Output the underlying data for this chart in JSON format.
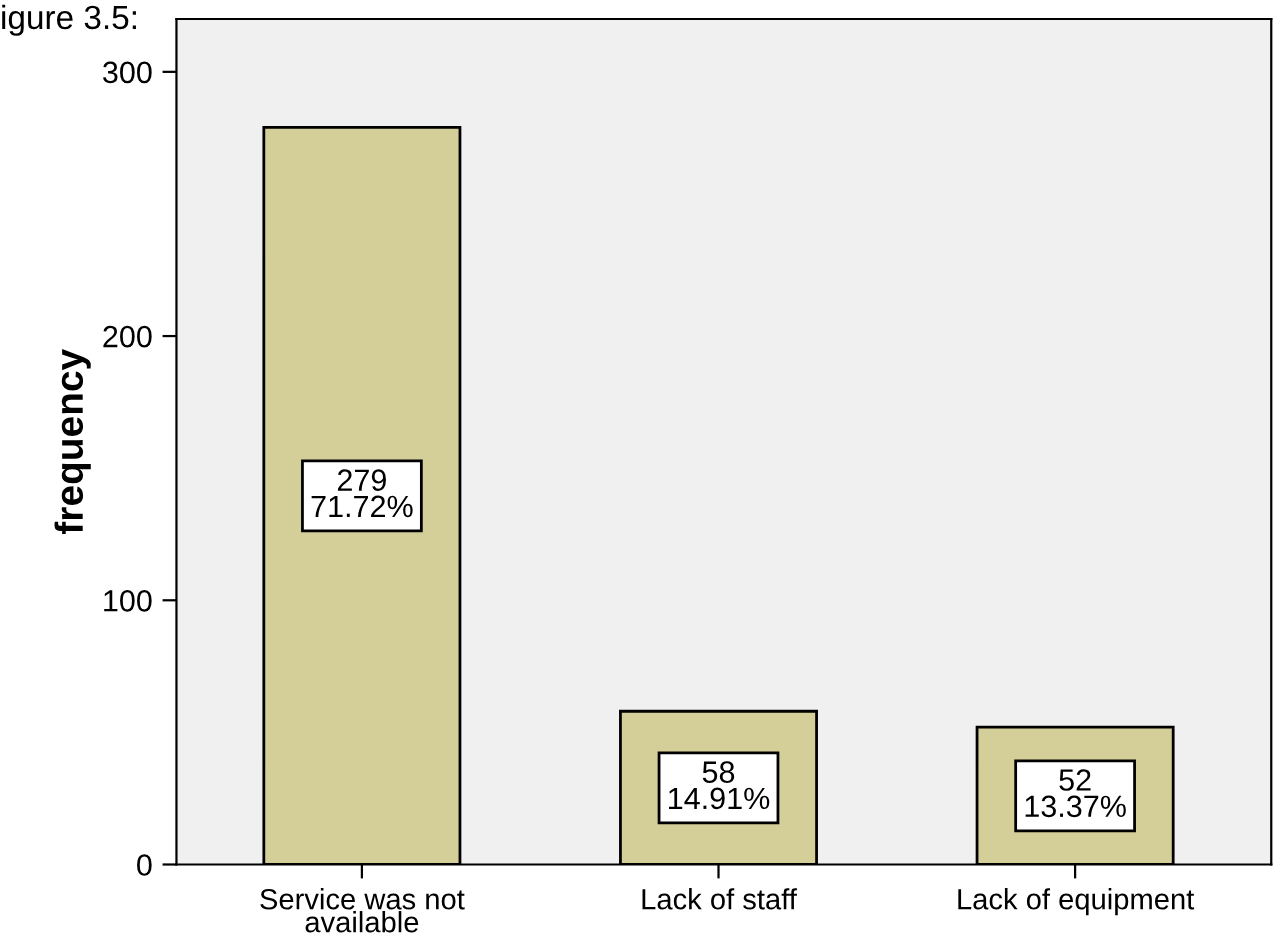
{
  "chart_data": {
    "type": "bar",
    "ylabel": "frequency",
    "annotations": [
      "igure 3.5:"
    ],
    "categories": [
      "Service was not\navailable",
      "Lack of staff",
      "Lack of equipment"
    ],
    "values": [
      279,
      58,
      52
    ],
    "color": "#d4cf98",
    "value_labels": [
      "279\n71.72%",
      "58\n14.91%",
      "52\n13.37%"
    ],
    "ylim": [
      0,
      320
    ],
    "yticks": [
      0,
      100,
      200,
      300
    ],
    "grid": false
  }
}
